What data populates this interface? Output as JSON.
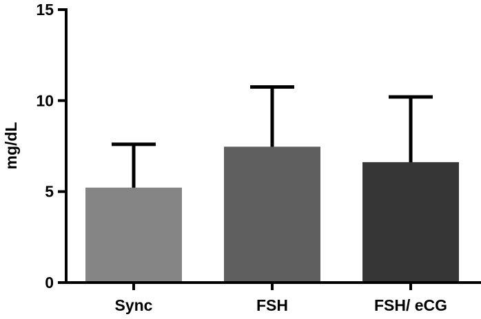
{
  "chart_data": {
    "type": "bar",
    "title": "",
    "xlabel": "",
    "ylabel": "mg/dL",
    "ylim": [
      0,
      15
    ],
    "yticks": [
      0,
      5,
      10,
      15
    ],
    "categories": [
      "Sync",
      "FSH",
      "FSH/ eCG"
    ],
    "values": [
      5.2,
      7.45,
      6.6
    ],
    "error_upper": [
      7.6,
      10.75,
      10.2
    ],
    "colors": [
      "#858585",
      "#5f5f5f",
      "#363636"
    ],
    "error_bar_color": "#000000",
    "grid": false,
    "legend": "none"
  }
}
